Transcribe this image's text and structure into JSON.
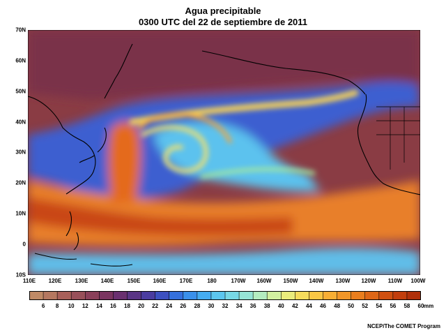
{
  "title": "Agua precipitable",
  "subtitle": "0300 UTC del 22 de septiembre de 2011",
  "lat_labels": [
    "70N",
    "60N",
    "50N",
    "40N",
    "30N",
    "20N",
    "10N",
    "0",
    "10S"
  ],
  "lon_labels": [
    "110E",
    "120E",
    "130E",
    "140E",
    "150E",
    "160E",
    "170E",
    "180",
    "170W",
    "160W",
    "150W",
    "140W",
    "130W",
    "120W",
    "110W",
    "100W"
  ],
  "colorbar": {
    "labels": [
      "6",
      "8",
      "10",
      "12",
      "14",
      "16",
      "18",
      "20",
      "22",
      "24",
      "26",
      "28",
      "30",
      "32",
      "34",
      "36",
      "38",
      "40",
      "42",
      "44",
      "46",
      "48",
      "50",
      "52",
      "54",
      "56",
      "58",
      "60"
    ],
    "unit": "mm",
    "colors": [
      "#c08a66",
      "#b57860",
      "#a8605a",
      "#98505a",
      "#8a405a",
      "#7a3560",
      "#6a3070",
      "#5a3585",
      "#4a3ca0",
      "#3c50c0",
      "#3570dc",
      "#3a90ea",
      "#45acf0",
      "#5cc6ef",
      "#78d8e6",
      "#96e4d6",
      "#b4ecc0",
      "#d2f0a0",
      "#eaec7c",
      "#f6dc5c",
      "#f9c644",
      "#f7ae34",
      "#f29628",
      "#ea7e1e",
      "#de6616",
      "#d05010",
      "#c23e0c",
      "#b0300a"
    ]
  },
  "credit": "NCEP/The COMET Program"
}
